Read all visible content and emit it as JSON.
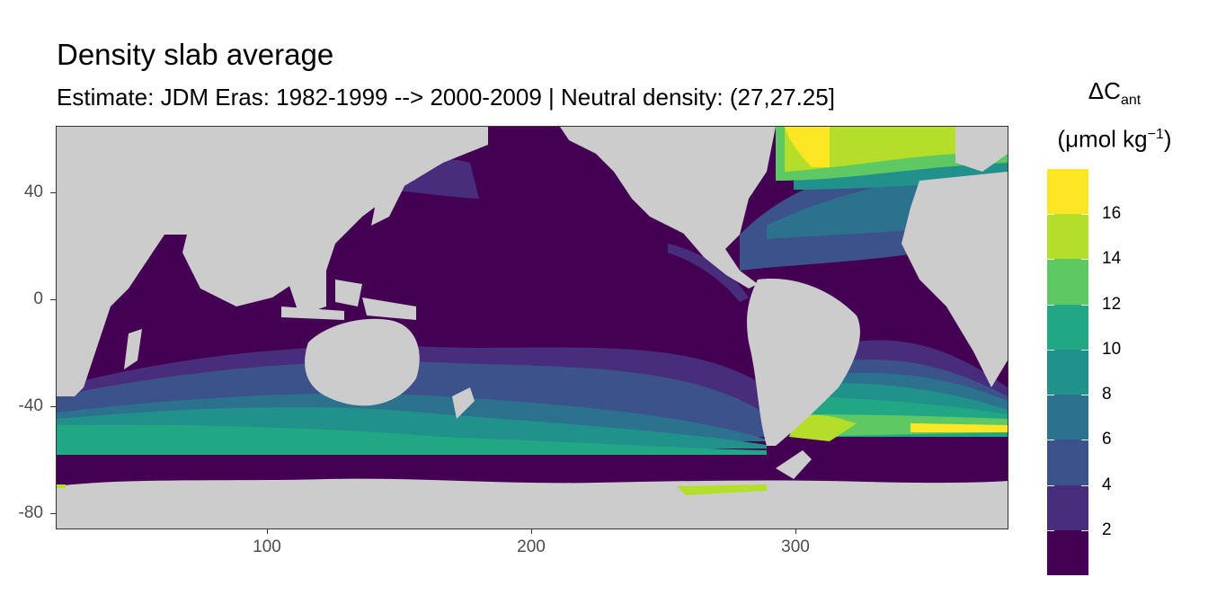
{
  "title": "Density slab average",
  "subtitle": "Estimate: JDM Eras: 1982-1999 --> 2000-2009 | Neutral density: (27,27.25]",
  "legend": {
    "title_main": "ΔC",
    "title_sub": "ant",
    "unit_prefix": "(μmol kg",
    "unit_sup": "−1",
    "unit_suffix": ")",
    "labels": [
      "16",
      "14",
      "12",
      "10",
      "8",
      "6",
      "4",
      "2"
    ],
    "bins": [
      {
        "range": "16-18",
        "color": "#fde725"
      },
      {
        "range": "14-16",
        "color": "#b5de2b"
      },
      {
        "range": "12-14",
        "color": "#5ec962"
      },
      {
        "range": "10-12",
        "color": "#21a784"
      },
      {
        "range": "8-10",
        "color": "#21918c"
      },
      {
        "range": "6-8",
        "color": "#2c728e"
      },
      {
        "range": "4-6",
        "color": "#3b528b"
      },
      {
        "range": "2-4",
        "color": "#472d7b"
      },
      {
        "range": "0-2",
        "color": "#440154"
      }
    ]
  },
  "colors": {
    "land": "#cccccc",
    "no_data": "#ffffff",
    "grid": "#ebebeb"
  },
  "axes": {
    "x_ticks": [
      "100",
      "200",
      "300"
    ],
    "y_ticks": [
      "40",
      "0",
      "-40",
      "-80"
    ],
    "x_range": [
      20,
      380
    ],
    "y_range": [
      -85,
      65
    ]
  }
}
